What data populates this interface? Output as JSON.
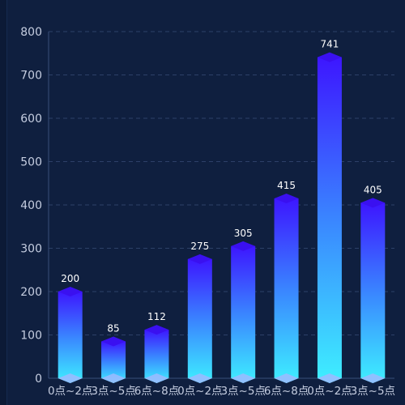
{
  "chart_data": {
    "type": "bar",
    "categories": [
      "0点~2点",
      "3点~5点",
      "6点~8点",
      "0点~2点",
      "3点~5点",
      "6点~8点",
      "0点~2点",
      "3点~5点"
    ],
    "values": [
      200,
      85,
      112,
      275,
      305,
      415,
      741,
      405
    ],
    "ylim": [
      0,
      800
    ],
    "yticks": [
      0,
      100,
      200,
      300,
      400,
      500,
      600,
      700,
      800
    ],
    "grid": true,
    "style": "3d-cylinder-gradient",
    "colors": {
      "bar_top": "#3d16ff",
      "bar_mid": "#3a86ff",
      "bar_bottom": "#3ef0ff",
      "cap": "#3a10f0",
      "bottom_cap": "#9fb8ff",
      "grid": "#2d4068",
      "axis": "#3a4f7a"
    }
  }
}
